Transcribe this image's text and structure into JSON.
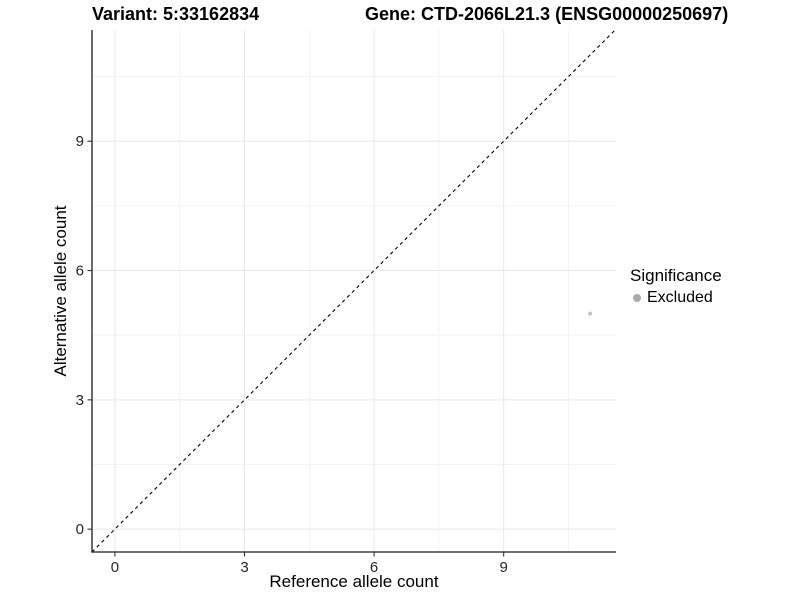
{
  "header": {
    "variant_title": "Variant: 5:33162834",
    "gene_title": "Gene: CTD-2066L21.3 (ENSG00000250697)"
  },
  "chart_data": {
    "type": "scatter",
    "xlabel": "Reference allele count",
    "ylabel": "Alternative allele count",
    "xlim": [
      -0.53,
      11.6
    ],
    "ylim": [
      -0.53,
      11.58
    ],
    "x_major_ticks": [
      0,
      3,
      6,
      9
    ],
    "y_major_ticks": [
      0,
      3,
      6,
      9
    ],
    "x_minor_ticks": [
      1.5,
      4.5,
      7.5,
      10.5
    ],
    "y_minor_ticks": [
      1.5,
      4.5,
      7.5,
      10.5
    ],
    "grid": "major+minor",
    "identity_line": {
      "style": "dashed",
      "slope": 1,
      "intercept": 0,
      "color": "#000000"
    },
    "points": [
      {
        "x": 11,
        "y": 5,
        "series": "Excluded",
        "color": "#c3c3c3"
      }
    ],
    "legend": {
      "title": "Significance",
      "position": "right",
      "items": [
        {
          "label": "Excluded",
          "color": "#ababab"
        }
      ]
    },
    "colors": {
      "background": "#ffffff",
      "major_grid": "#e8e8e8",
      "minor_grid": "#f3f3f3",
      "axis_line": "#1a1a1a",
      "tick_mark": "#333333",
      "tick_label": "#262626"
    }
  }
}
